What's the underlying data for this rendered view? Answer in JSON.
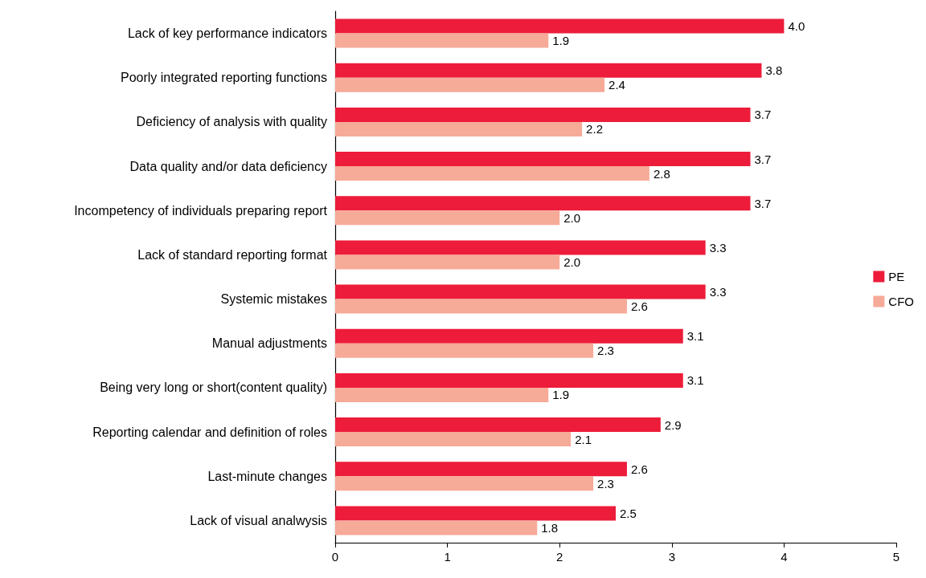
{
  "chart_data": {
    "type": "bar",
    "orientation": "horizontal",
    "categories": [
      "Lack of key performance indicators",
      "Poorly integrated reporting functions",
      "Deficiency of analysis with quality",
      "Data quality and/or data deficiency",
      "Incompetency of individuals preparing report",
      "Lack of standard reporting format",
      "Systemic mistakes",
      "Manual adjustments",
      "Being very long or short(content quality)",
      "Reporting calendar and definition of roles",
      "Last-minute changes",
      "Lack of visual analwysis"
    ],
    "series": [
      {
        "name": "PE",
        "color": "#ed1c3a",
        "values": [
          4.0,
          3.8,
          3.7,
          3.7,
          3.7,
          3.3,
          3.3,
          3.1,
          3.1,
          2.9,
          2.6,
          2.5
        ],
        "value_labels": [
          "4.0",
          "3.8",
          "3.7",
          "3.7",
          "3.7",
          "3.3",
          "3.3",
          "3.1",
          "3.1",
          "2.9",
          "2.6",
          "2.5"
        ]
      },
      {
        "name": "CFO",
        "color": "#f6aa98",
        "values": [
          1.9,
          2.4,
          2.2,
          2.8,
          2.0,
          2.0,
          2.6,
          2.3,
          1.9,
          2.1,
          2.3,
          1.8
        ],
        "value_labels": [
          "1.9",
          "2.4",
          "2.2",
          "2.8",
          "2.0",
          "2.0",
          "2.6",
          "2.3",
          "1.9",
          "2.1",
          "2.3",
          "1.8"
        ]
      }
    ],
    "xlim": [
      0,
      5
    ],
    "xticks": [
      0,
      1,
      2,
      3,
      4,
      5
    ],
    "legend": "right",
    "grid": false
  }
}
